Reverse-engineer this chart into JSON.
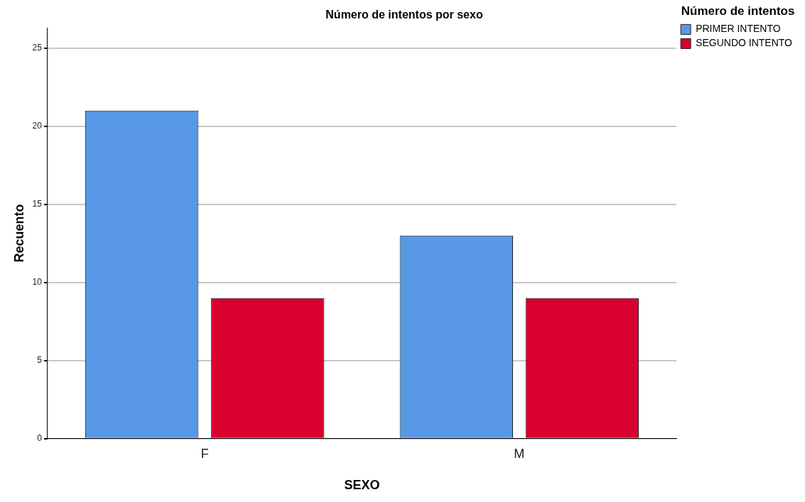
{
  "chart_data": {
    "type": "bar",
    "title": "Número de intentos por sexo",
    "xlabel": "SEXO",
    "ylabel": "Recuento",
    "legend_title": "Número de intentos",
    "categories": [
      "F",
      "M"
    ],
    "series": [
      {
        "name": "PRIMER INTENTO",
        "color": "#5898e4",
        "values": [
          21,
          13
        ]
      },
      {
        "name": "SEGUNDO INTENTO",
        "color": "#d7002f",
        "values": [
          9,
          9
        ]
      }
    ],
    "ylim": [
      0,
      26.3
    ],
    "yticks": [
      0,
      5,
      10,
      15,
      20,
      25
    ],
    "grid": "y",
    "legend": "top right"
  }
}
